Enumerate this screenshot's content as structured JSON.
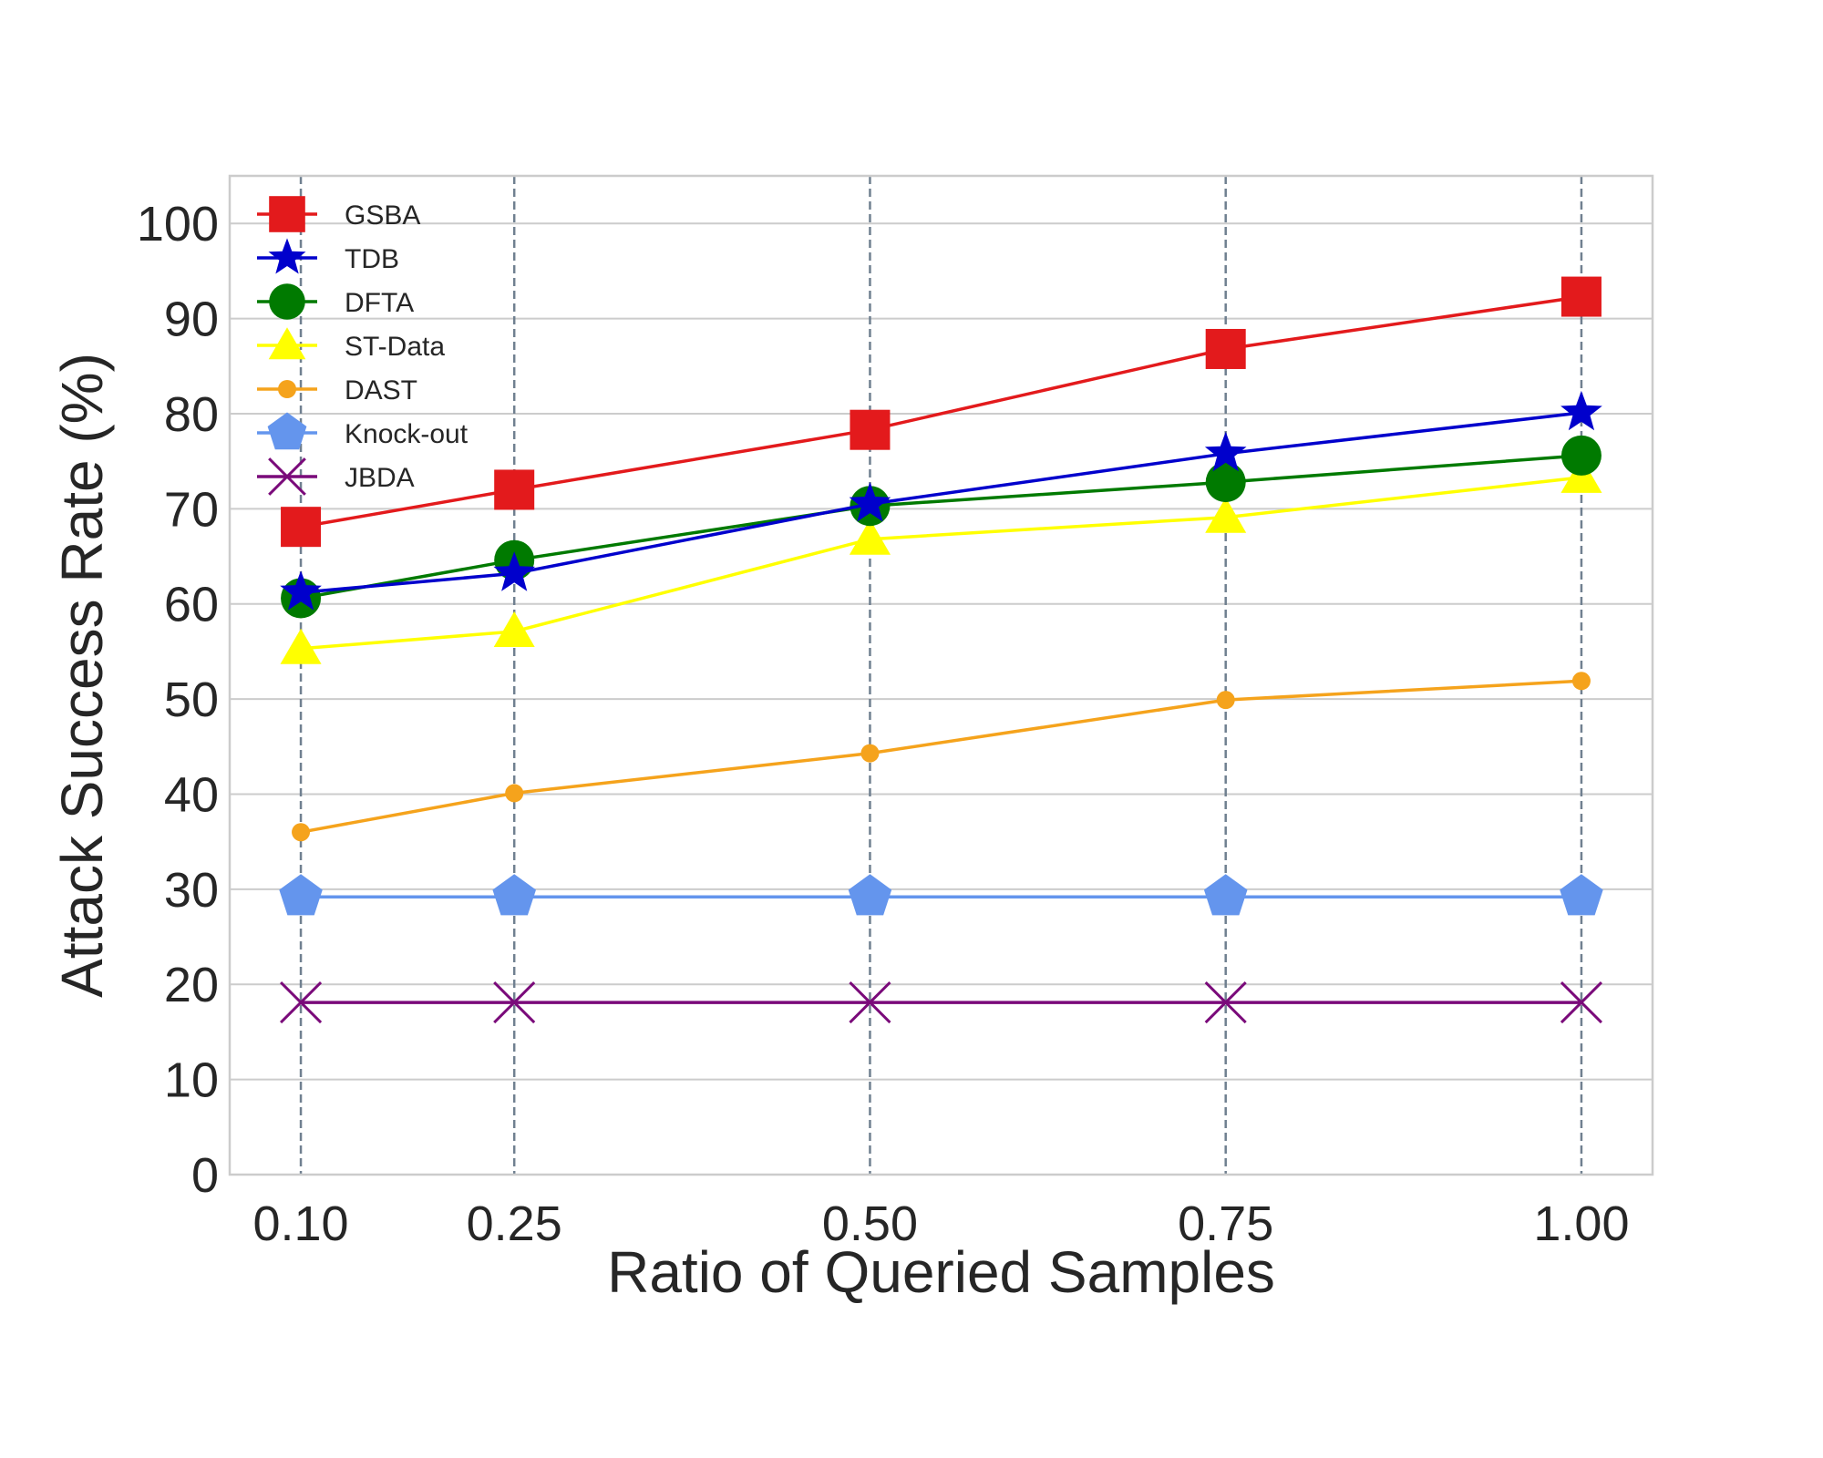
{
  "chart_data": {
    "type": "line",
    "title": "",
    "xlabel": "Ratio of Queried Samples",
    "ylabel": "Attack Success Rate (%)",
    "x": [
      0.1,
      0.25,
      0.5,
      0.75,
      1.0
    ],
    "x_tick_labels": [
      "0.10",
      "0.25",
      "0.50",
      "0.75",
      "1.00"
    ],
    "xlim": [
      0.05,
      1.05
    ],
    "ylim": [
      0,
      105
    ],
    "y_ticks": [
      0,
      10,
      20,
      30,
      40,
      50,
      60,
      70,
      80,
      90,
      100
    ],
    "y_tick_labels": [
      "0",
      "10",
      "20",
      "30",
      "40",
      "50",
      "60",
      "70",
      "80",
      "90",
      "100"
    ],
    "grid": true,
    "legend_position": "top-left",
    "series": [
      {
        "name": "GSBA",
        "values": [
          68.1,
          72.0,
          78.3,
          86.8,
          92.3
        ],
        "color": "#e31a1c",
        "marker": "square"
      },
      {
        "name": "TDB",
        "values": [
          61.2,
          63.2,
          70.5,
          75.8,
          80.1
        ],
        "color": "#0000cc",
        "marker": "star"
      },
      {
        "name": "DFTA",
        "values": [
          60.6,
          64.6,
          70.3,
          72.8,
          75.6
        ],
        "color": "#007a00",
        "marker": "circle"
      },
      {
        "name": "ST-Data",
        "values": [
          55.3,
          57.1,
          66.8,
          69.1,
          73.3
        ],
        "color": "#ffff00",
        "marker": "triangle"
      },
      {
        "name": "DAST",
        "values": [
          36.0,
          40.1,
          44.3,
          49.9,
          51.9
        ],
        "color": "#f5a31c",
        "marker": "small-circle"
      },
      {
        "name": "Knock-out",
        "values": [
          29.2,
          29.2,
          29.2,
          29.2,
          29.2
        ],
        "color": "#6495ed",
        "marker": "pentagon"
      },
      {
        "name": "JBDA",
        "values": [
          18.1,
          18.1,
          18.1,
          18.1,
          18.1
        ],
        "color": "#7a0a7a",
        "marker": "x"
      }
    ]
  }
}
